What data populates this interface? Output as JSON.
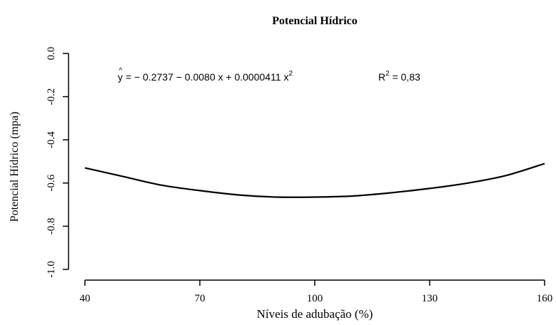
{
  "chart_data": {
    "type": "line",
    "title": "Potencial Hídrico",
    "xlabel": "Níveis de adubação (%)",
    "ylabel": "Potencial Hídrico (mpa)",
    "xlim": [
      40,
      160
    ],
    "ylim": [
      -1.0,
      0.0
    ],
    "x_ticks": [
      40,
      70,
      100,
      130,
      160
    ],
    "x_tick_labels": [
      "40",
      "70",
      "100",
      "130",
      "160"
    ],
    "y_ticks": [
      0.0,
      -0.2,
      -0.4,
      -0.6,
      -0.8,
      -1.0
    ],
    "y_tick_labels": [
      "0.0",
      "-0.2",
      "-0.4",
      "-0.6",
      "-0.8",
      "-1.0"
    ],
    "grid": false,
    "series": [
      {
        "x": [
          40,
          50,
          60,
          70,
          80,
          90,
          100,
          110,
          120,
          130,
          140,
          150,
          160
        ],
        "y": [
          -0.53,
          -0.57,
          -0.61,
          -0.635,
          -0.655,
          -0.665,
          -0.665,
          -0.66,
          -0.645,
          -0.625,
          -0.6,
          -0.565,
          -0.51
        ]
      }
    ],
    "annotation": {
      "equation_prefix": "y = − 0.2737 − 0.0080 x + 0.0000411 x",
      "equation_exp": "2",
      "r2_prefix": "R",
      "r2_exp": "2",
      "r2_value": " = 0,83"
    }
  }
}
